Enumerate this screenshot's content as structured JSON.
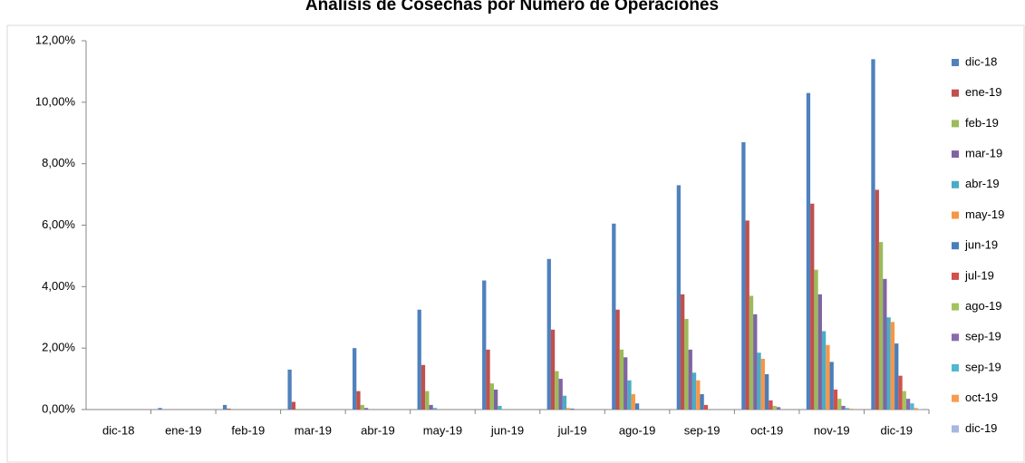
{
  "chart_data": {
    "type": "bar",
    "title": "Análisis de Cosechas por Número de Operaciones",
    "categories": [
      "dic-18",
      "ene-19",
      "feb-19",
      "mar-19",
      "abr-19",
      "may-19",
      "jun-19",
      "jul-19",
      "ago-19",
      "sep-19",
      "oct-19",
      "nov-19",
      "dic-19"
    ],
    "ylim": [
      0,
      12
    ],
    "yticks": [
      {
        "value": 0,
        "label": "0,00%"
      },
      {
        "value": 2,
        "label": "2,00%"
      },
      {
        "value": 4,
        "label": "4,00%"
      },
      {
        "value": 6,
        "label": "6,00%"
      },
      {
        "value": 8,
        "label": "8,00%"
      },
      {
        "value": 10,
        "label": "10,00%"
      },
      {
        "value": 12,
        "label": "12,00%"
      }
    ],
    "legend": "right",
    "series": [
      {
        "name": "dic-18",
        "color": "#4F81BD",
        "values": [
          0,
          0.05,
          0.15,
          1.3,
          2.0,
          3.25,
          4.2,
          4.9,
          6.05,
          7.3,
          8.7,
          10.3,
          11.4
        ]
      },
      {
        "name": "ene-19",
        "color": "#C0504D",
        "values": [
          0,
          0,
          0.03,
          0.25,
          0.6,
          1.45,
          1.95,
          2.6,
          3.25,
          3.75,
          6.15,
          6.7,
          7.15
        ]
      },
      {
        "name": "feb-19",
        "color": "#9BBB59",
        "values": [
          0,
          0,
          0,
          0.02,
          0.15,
          0.6,
          0.85,
          1.25,
          1.95,
          2.95,
          3.7,
          4.55,
          5.45
        ]
      },
      {
        "name": "mar-19",
        "color": "#8064A2",
        "values": [
          0,
          0,
          0,
          0,
          0.05,
          0.15,
          0.65,
          1.0,
          1.7,
          1.95,
          3.1,
          3.75,
          4.25
        ]
      },
      {
        "name": "abr-19",
        "color": "#4BACC6",
        "values": [
          0,
          0,
          0,
          0,
          0,
          0.05,
          0.12,
          0.45,
          0.95,
          1.2,
          1.85,
          2.55,
          3.0
        ]
      },
      {
        "name": "may-19",
        "color": "#F79646",
        "values": [
          0,
          0,
          0,
          0,
          0,
          0,
          0,
          0.05,
          0.5,
          0.95,
          1.65,
          2.1,
          2.85
        ]
      },
      {
        "name": "jun-19",
        "color": "#4A7EBB",
        "values": [
          0,
          0,
          0,
          0,
          0,
          0,
          0,
          0.03,
          0.2,
          0.5,
          1.15,
          1.55,
          2.15
        ]
      },
      {
        "name": "jul-19",
        "color": "#D4504B",
        "values": [
          0,
          0,
          0,
          0,
          0,
          0,
          0,
          0,
          0,
          0.15,
          0.3,
          0.65,
          1.1
        ]
      },
      {
        "name": "ago-19",
        "color": "#A2C45E",
        "values": [
          0,
          0,
          0,
          0,
          0,
          0,
          0,
          0,
          0,
          0,
          0.12,
          0.35,
          0.6
        ]
      },
      {
        "name": "sep-19",
        "color": "#8A6CAD",
        "values": [
          0,
          0,
          0,
          0,
          0,
          0,
          0,
          0,
          0,
          0,
          0.08,
          0.12,
          0.35
        ]
      },
      {
        "name": "sep-19",
        "color": "#50B8D2",
        "values": [
          0,
          0,
          0,
          0,
          0,
          0,
          0,
          0,
          0,
          0,
          0,
          0.05,
          0.2
        ]
      },
      {
        "name": "oct-19",
        "color": "#F89C52",
        "values": [
          0,
          0,
          0,
          0,
          0,
          0,
          0,
          0,
          0,
          0,
          0,
          0.03,
          0.05
        ]
      },
      {
        "name": "dic-19",
        "color": "#A5B8E0",
        "values": [
          0,
          0,
          0,
          0,
          0,
          0,
          0,
          0,
          0,
          0,
          0,
          0,
          0.02
        ]
      }
    ]
  }
}
